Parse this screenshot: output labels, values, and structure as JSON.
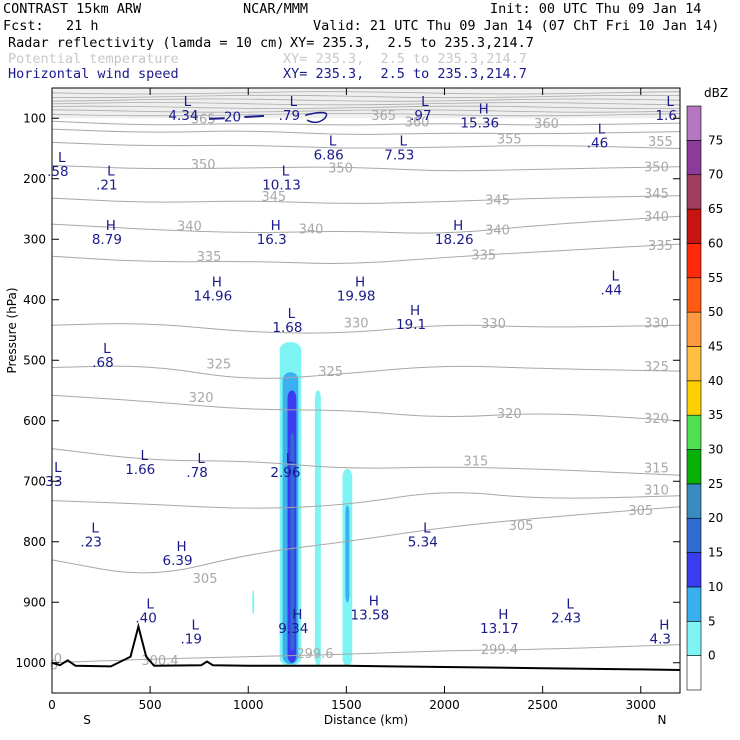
{
  "header": {
    "model": "CONTRAST 15km ARW",
    "org": "NCAR/MMM",
    "init": "Init: 00 UTC Thu 09 Jan 14",
    "fcst_label": "Fcst:",
    "fcst_value": "21 h",
    "valid": "Valid: 21 UTC Thu 09 Jan 14 (07 ChT Fri 10 Jan 14)",
    "field1_name": "Radar reflectivity (lamda = 10 cm)",
    "field1_xy": "XY= 235.3,  2.5 to 235.3,214.7",
    "field2_name": "Potential temperature",
    "field2_xy": "XY= 235.3,  2.5 to 235.3,214.7",
    "field3_name": "Horizontal wind speed",
    "field3_xy": "XY= 235.3,  2.5 to 235.3,214.7"
  },
  "colors": {
    "wind_contour": "#1a1a8c",
    "theta_contour": "#a8a8a8",
    "terrain": "#000000"
  },
  "chart_data": {
    "type": "cross-section",
    "xlabel": "Distance (km)",
    "ylabel": "Pressure (hPa)",
    "xlim": [
      0,
      3200
    ],
    "ylim": [
      1050,
      50
    ],
    "x_ticks": [
      0,
      500,
      1000,
      1500,
      2000,
      2500,
      3000
    ],
    "x_tick_labels": [
      "0",
      "500",
      "1000",
      "1500",
      "2000",
      "2500",
      "3000"
    ],
    "y_ticks": [
      100,
      200,
      300,
      400,
      500,
      600,
      700,
      800,
      900,
      1000
    ],
    "y_tick_labels": [
      "100",
      "200",
      "300",
      "400",
      "500",
      "600",
      "700",
      "800",
      "900",
      "1000"
    ],
    "end_labels": {
      "left": "S",
      "right": "N"
    },
    "colorbar": {
      "unit": "dBZ",
      "levels": [
        "0",
        "5",
        "10",
        "15",
        "20",
        "25",
        "30",
        "35",
        "40",
        "45",
        "50",
        "55",
        "60",
        "65",
        "70",
        "75"
      ],
      "colors": [
        "#ffffff",
        "#7ff4f4",
        "#3ab0f0",
        "#3b3bf0",
        "#2f6cd0",
        "#3a8cc0",
        "#08b008",
        "#50e050",
        "#ffd000",
        "#ffc040",
        "#ff9a40",
        "#ff5a14",
        "#ff2a0a",
        "#c81410",
        "#a03c5c",
        "#8c3c98",
        "#b478c0"
      ]
    },
    "theta_contours": [
      {
        "label": "365",
        "values_hPa": [
          [
            0,
            105
          ],
          [
            500,
            112
          ],
          [
            1000,
            108
          ],
          [
            1500,
            112
          ],
          [
            2000,
            108
          ],
          [
            2500,
            112
          ],
          [
            3200,
            108
          ]
        ]
      },
      {
        "label": "360",
        "values_hPa": [
          [
            0,
            118
          ],
          [
            500,
            124
          ],
          [
            1000,
            120
          ],
          [
            1500,
            128
          ],
          [
            2000,
            124
          ],
          [
            2500,
            126
          ],
          [
            3200,
            122
          ]
        ]
      },
      {
        "label": "355",
        "values_hPa": [
          [
            0,
            140
          ],
          [
            500,
            146
          ],
          [
            1000,
            144
          ],
          [
            1500,
            150
          ],
          [
            2000,
            148
          ],
          [
            2500,
            144
          ],
          [
            3200,
            150
          ]
        ]
      },
      {
        "label": "350",
        "values_hPa": [
          [
            0,
            178
          ],
          [
            500,
            184
          ],
          [
            1000,
            182
          ],
          [
            1500,
            180
          ],
          [
            2000,
            188
          ],
          [
            2500,
            184
          ],
          [
            3200,
            180
          ]
        ]
      },
      {
        "label": "345",
        "values_hPa": [
          [
            0,
            232
          ],
          [
            500,
            240
          ],
          [
            1000,
            236
          ],
          [
            1500,
            242
          ],
          [
            2000,
            238
          ],
          [
            2500,
            232
          ],
          [
            3200,
            228
          ]
        ]
      },
      {
        "label": "340",
        "values_hPa": [
          [
            0,
            275
          ],
          [
            500,
            284
          ],
          [
            1000,
            290
          ],
          [
            1500,
            286
          ],
          [
            2000,
            292
          ],
          [
            2500,
            276
          ],
          [
            3200,
            262
          ]
        ]
      },
      {
        "label": "335",
        "values_hPa": [
          [
            0,
            328
          ],
          [
            500,
            338
          ],
          [
            1000,
            336
          ],
          [
            1500,
            342
          ],
          [
            2000,
            330
          ],
          [
            2500,
            320
          ],
          [
            3200,
            308
          ]
        ]
      },
      {
        "label": "330",
        "values_hPa": [
          [
            0,
            442
          ],
          [
            500,
            438
          ],
          [
            1000,
            454
          ],
          [
            1500,
            456
          ],
          [
            2000,
            440
          ],
          [
            2500,
            446
          ],
          [
            3200,
            442
          ]
        ]
      },
      {
        "label": "325",
        "values_hPa": [
          [
            0,
            512
          ],
          [
            500,
            508
          ],
          [
            1000,
            534
          ],
          [
            1500,
            522
          ],
          [
            2000,
            508
          ],
          [
            2500,
            514
          ],
          [
            3200,
            518
          ]
        ]
      },
      {
        "label": "320",
        "values_hPa": [
          [
            0,
            558
          ],
          [
            500,
            568
          ],
          [
            1000,
            582
          ],
          [
            1500,
            582
          ],
          [
            2000,
            596
          ],
          [
            2500,
            586
          ],
          [
            3200,
            600
          ]
        ]
      },
      {
        "label": "315",
        "values_hPa": [
          [
            0,
            646
          ],
          [
            500,
            666
          ],
          [
            1000,
            666
          ],
          [
            1500,
            680
          ],
          [
            2000,
            676
          ],
          [
            2500,
            680
          ],
          [
            3200,
            690
          ]
        ]
      },
      {
        "label": "310",
        "values_hPa": [
          [
            0,
            732
          ],
          [
            500,
            738
          ],
          [
            1000,
            746
          ],
          [
            1500,
            740
          ],
          [
            2000,
            714
          ],
          [
            2500,
            730
          ],
          [
            3200,
            724
          ]
        ]
      },
      {
        "label": "305",
        "values_hPa": [
          [
            0,
            830
          ],
          [
            500,
            860
          ],
          [
            1000,
            820
          ],
          [
            1500,
            800
          ],
          [
            2000,
            776
          ],
          [
            2500,
            760
          ],
          [
            3200,
            742
          ]
        ]
      },
      {
        "label": "300",
        "values_hPa": [
          [
            0,
            1000
          ],
          [
            500,
            994
          ],
          [
            1000,
            990
          ],
          [
            1500,
            986
          ],
          [
            2000,
            980
          ],
          [
            2500,
            978
          ],
          [
            3200,
            970
          ]
        ]
      }
    ],
    "theta_labels": [
      {
        "text": "365",
        "x": 770,
        "p": 103
      },
      {
        "text": "365",
        "x": 1690,
        "p": 97
      },
      {
        "text": "360",
        "x": 1860,
        "p": 108
      },
      {
        "text": "360",
        "x": 2520,
        "p": 110
      },
      {
        "text": "355",
        "x": 2330,
        "p": 136
      },
      {
        "text": "355",
        "x": 3100,
        "p": 140
      },
      {
        "text": "350",
        "x": 770,
        "p": 178
      },
      {
        "text": "350",
        "x": 1470,
        "p": 184
      },
      {
        "text": "350",
        "x": 3080,
        "p": 182
      },
      {
        "text": "345",
        "x": 1130,
        "p": 231
      },
      {
        "text": "345",
        "x": 2270,
        "p": 237
      },
      {
        "text": "345",
        "x": 3080,
        "p": 226
      },
      {
        "text": "340",
        "x": 700,
        "p": 280
      },
      {
        "text": "340",
        "x": 1320,
        "p": 285
      },
      {
        "text": "340",
        "x": 2270,
        "p": 286
      },
      {
        "text": "340",
        "x": 3080,
        "p": 264
      },
      {
        "text": "335",
        "x": 800,
        "p": 330
      },
      {
        "text": "335",
        "x": 2200,
        "p": 328
      },
      {
        "text": "335",
        "x": 3100,
        "p": 312
      },
      {
        "text": "330",
        "x": 1550,
        "p": 440
      },
      {
        "text": "330",
        "x": 2250,
        "p": 441
      },
      {
        "text": "330",
        "x": 3080,
        "p": 440
      },
      {
        "text": "325",
        "x": 850,
        "p": 508
      },
      {
        "text": "325",
        "x": 1420,
        "p": 520
      },
      {
        "text": "325",
        "x": 3080,
        "p": 512
      },
      {
        "text": "320",
        "x": 760,
        "p": 563
      },
      {
        "text": "320",
        "x": 2330,
        "p": 590
      },
      {
        "text": "320",
        "x": 3080,
        "p": 598
      },
      {
        "text": "315",
        "x": 2160,
        "p": 668
      },
      {
        "text": "315",
        "x": 3080,
        "p": 680
      },
      {
        "text": "310",
        "x": 3080,
        "p": 716
      },
      {
        "text": "305",
        "x": 2390,
        "p": 775
      },
      {
        "text": "305",
        "x": 3000,
        "p": 750
      },
      {
        "text": "305",
        "x": 780,
        "p": 862
      },
      {
        "text": "300.4",
        "x": 550,
        "p": 998
      },
      {
        "text": "299.6",
        "x": 1340,
        "p": 986
      },
      {
        "text": "299.4",
        "x": 2280,
        "p": 980
      },
      {
        "text": "0",
        "x": 30,
        "p": 995
      },
      {
        "text": "0",
        "x": 10,
        "p": 1005
      }
    ],
    "wind_extrema": [
      {
        "kind": "L",
        "value": "4.34",
        "x": 690,
        "p": 80
      },
      {
        "kind": "L",
        "value": ".79",
        "x": 1230,
        "p": 80
      },
      {
        "kind": "L",
        "value": ".97",
        "x": 1900,
        "p": 80
      },
      {
        "kind": "L",
        "value": "1.6",
        "x": 3150,
        "p": 80
      },
      {
        "kind": "H",
        "value": "15.36",
        "x": 2200,
        "p": 92
      },
      {
        "kind": "L",
        "value": "6.86",
        "x": 1430,
        "p": 145
      },
      {
        "kind": "L",
        "value": "7.53",
        "x": 1790,
        "p": 145
      },
      {
        "kind": "L",
        "value": ".46",
        "x": 2800,
        "p": 125
      },
      {
        "kind": "L",
        "value": ".58",
        "x": 50,
        "p": 172
      },
      {
        "kind": "L",
        "value": ".21",
        "x": 300,
        "p": 195
      },
      {
        "kind": "L",
        "value": "10.13",
        "x": 1190,
        "p": 195
      },
      {
        "kind": "H",
        "value": "8.79",
        "x": 300,
        "p": 285
      },
      {
        "kind": "H",
        "value": "16.3",
        "x": 1140,
        "p": 285
      },
      {
        "kind": "H",
        "value": "18.26",
        "x": 2070,
        "p": 285
      },
      {
        "kind": "L",
        "value": ".44",
        "x": 2870,
        "p": 368
      },
      {
        "kind": "H",
        "value": "14.96",
        "x": 840,
        "p": 378
      },
      {
        "kind": "H",
        "value": "19.98",
        "x": 1570,
        "p": 378
      },
      {
        "kind": "L",
        "value": "1.68",
        "x": 1220,
        "p": 430
      },
      {
        "kind": "H",
        "value": "19.1",
        "x": 1850,
        "p": 425
      },
      {
        "kind": "L",
        "value": ".68",
        "x": 280,
        "p": 488
      },
      {
        "kind": "L",
        "value": "1.66",
        "x": 470,
        "p": 665
      },
      {
        "kind": "L",
        "value": ".78",
        "x": 760,
        "p": 670
      },
      {
        "kind": "L",
        "value": "2.96",
        "x": 1210,
        "p": 670
      },
      {
        "kind": "L",
        "value": "33",
        "x": 30,
        "p": 685
      },
      {
        "kind": "L",
        "value": ".23",
        "x": 220,
        "p": 785
      },
      {
        "kind": "L",
        "value": "5.34",
        "x": 1910,
        "p": 785
      },
      {
        "kind": "H",
        "value": "6.39",
        "x": 660,
        "p": 815
      },
      {
        "kind": "H",
        "value": "13.58",
        "x": 1640,
        "p": 905
      },
      {
        "kind": "L",
        "value": ".40",
        "x": 500,
        "p": 910
      },
      {
        "kind": "H",
        "value": "13.17",
        "x": 2300,
        "p": 928
      },
      {
        "kind": "L",
        "value": "2.43",
        "x": 2640,
        "p": 910
      },
      {
        "kind": "H",
        "value": "9.34",
        "x": 1250,
        "p": 928
      },
      {
        "kind": "L",
        "value": ".19",
        "x": 730,
        "p": 945
      },
      {
        "kind": "H",
        "value": "4.3",
        "x": 3120,
        "p": 945
      }
    ],
    "wind_contour_label": {
      "text": "20",
      "x": 920,
      "p": 97
    },
    "reflectivity_cells": [
      {
        "dbz_level": 5,
        "x0": 1160,
        "x1": 1270,
        "p_top": 470,
        "p_bot": 1005
      },
      {
        "dbz_level": 10,
        "x0": 1175,
        "x1": 1255,
        "p_top": 520,
        "p_bot": 1002
      },
      {
        "dbz_level": 15,
        "x0": 1200,
        "x1": 1245,
        "p_top": 550,
        "p_bot": 1000
      },
      {
        "dbz_level": 20,
        "x0": 1215,
        "x1": 1235,
        "p_top": 620,
        "p_bot": 980
      },
      {
        "dbz_level": 5,
        "x0": 1340,
        "x1": 1370,
        "p_top": 550,
        "p_bot": 1005
      },
      {
        "dbz_level": 5,
        "x0": 1480,
        "x1": 1530,
        "p_top": 680,
        "p_bot": 1005
      },
      {
        "dbz_level": 10,
        "x0": 1495,
        "x1": 1515,
        "p_top": 740,
        "p_bot": 900
      },
      {
        "dbz_level": 5,
        "x0": 1020,
        "x1": 1030,
        "p_top": 880,
        "p_bot": 920
      }
    ],
    "terrain_profile": [
      [
        0,
        1000
      ],
      [
        40,
        1004
      ],
      [
        80,
        996
      ],
      [
        120,
        1005
      ],
      [
        300,
        1006
      ],
      [
        400,
        990
      ],
      [
        440,
        940
      ],
      [
        480,
        990
      ],
      [
        520,
        1005
      ],
      [
        760,
        1004
      ],
      [
        790,
        998
      ],
      [
        820,
        1004
      ],
      [
        1000,
        1005
      ],
      [
        1500,
        1005
      ],
      [
        2000,
        1007
      ],
      [
        2500,
        1009
      ],
      [
        3000,
        1011
      ],
      [
        3200,
        1012
      ]
    ]
  }
}
